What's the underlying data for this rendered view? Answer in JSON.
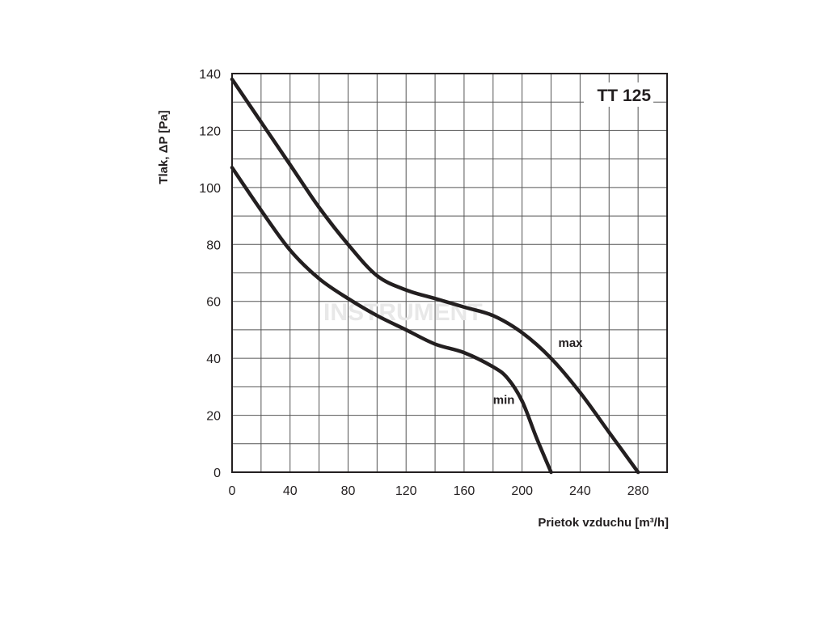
{
  "chart_data": {
    "type": "line",
    "title": "TT 125",
    "xlabel": "Prietok vzduchu  [m³/h]",
    "ylabel": "Tlak, ΔP [Pa]",
    "xlim": [
      0,
      300
    ],
    "ylim": [
      0,
      140
    ],
    "xticks": [
      0,
      40,
      80,
      120,
      160,
      200,
      240,
      280
    ],
    "yticks": [
      0,
      20,
      40,
      60,
      80,
      100,
      120,
      140
    ],
    "grid": true,
    "x_grid_step": 20,
    "y_grid_step": 10,
    "watermark": "INSTRUMENT",
    "series": [
      {
        "name": "max",
        "label_at": [
          225,
          44
        ],
        "x": [
          0,
          20,
          40,
          60,
          80,
          100,
          120,
          140,
          160,
          180,
          200,
          220,
          240,
          260,
          280
        ],
        "y": [
          138,
          123,
          108,
          93,
          80,
          69,
          64,
          61,
          58,
          55,
          49,
          40,
          28,
          14,
          0
        ]
      },
      {
        "name": "min",
        "label_at": [
          180,
          24
        ],
        "x": [
          0,
          20,
          40,
          60,
          80,
          100,
          120,
          140,
          160,
          180,
          190,
          200,
          210,
          220
        ],
        "y": [
          107,
          92,
          78,
          68,
          61,
          55,
          50,
          45,
          42,
          37,
          33,
          25,
          12,
          0
        ]
      }
    ]
  }
}
